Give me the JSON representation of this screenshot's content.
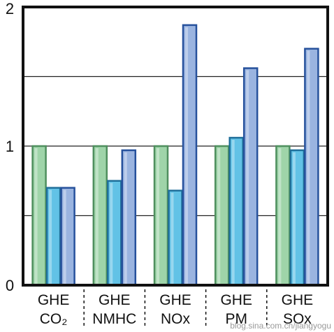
{
  "chart_data": {
    "type": "bar",
    "categories": [
      {
        "line1": "GHE",
        "line2": "CO₂"
      },
      {
        "line1": "GHE",
        "line2": "NMHC"
      },
      {
        "line1": "GHE",
        "line2": "NOx"
      },
      {
        "line1": "GHE",
        "line2": "PM"
      },
      {
        "line1": "GHE",
        "line2": "SOx"
      }
    ],
    "series": [
      {
        "values": [
          1.0,
          1.0,
          1.0,
          1.0,
          1.0
        ],
        "color": "#9fd4a9",
        "stroke": "#4f8f5e"
      },
      {
        "values": [
          0.7,
          0.75,
          0.68,
          1.06,
          0.97
        ],
        "color": "#62c2e6",
        "stroke": "#1f6f9a"
      },
      {
        "values": [
          0.7,
          0.97,
          1.87,
          1.56,
          1.7
        ],
        "color": "#9ab4e0",
        "stroke": "#26519c"
      }
    ],
    "yticks": [
      "0",
      "1",
      "2"
    ],
    "ylim": [
      0,
      2
    ],
    "gridlines": [
      0.5,
      1.0,
      1.5
    ],
    "grid": true,
    "title": "",
    "xlabel": "",
    "ylabel": ""
  },
  "watermark": "blog.sina.com.cn/jiangyogu"
}
